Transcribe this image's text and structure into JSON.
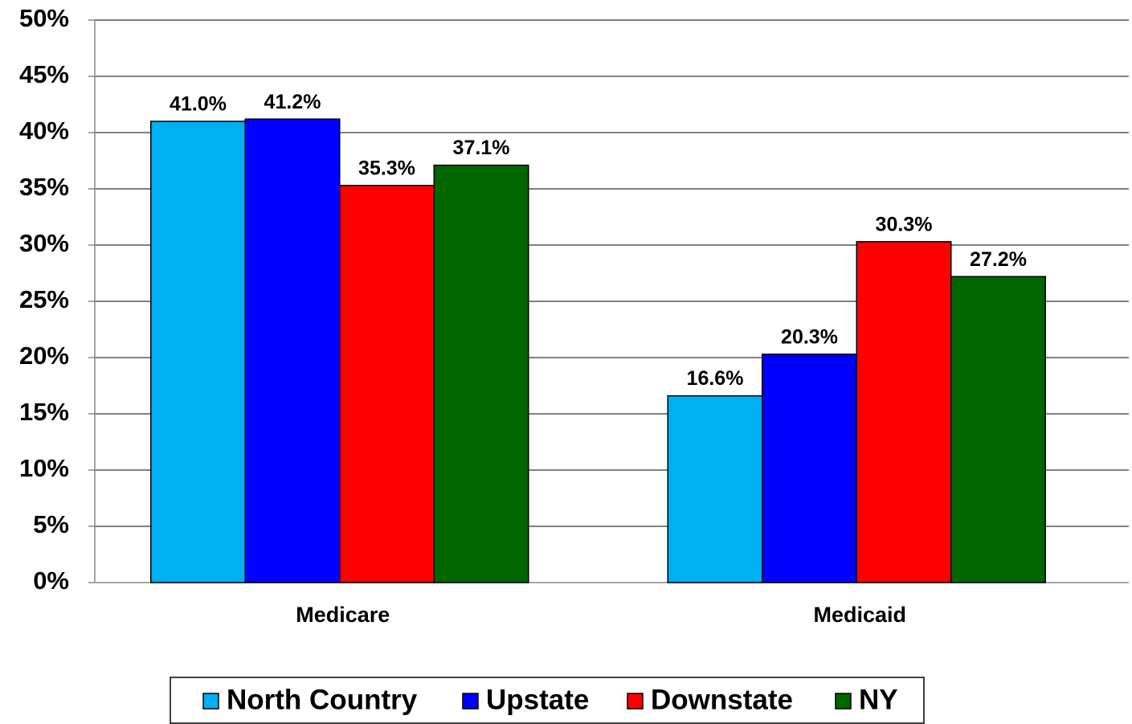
{
  "chart_data": {
    "type": "bar",
    "categories": [
      "Medicare",
      "Medicaid"
    ],
    "series": [
      {
        "name": "North Country",
        "color": "#00b0f0",
        "values": [
          41.0,
          16.6
        ],
        "value_labels": [
          "41.0%",
          "16.6%"
        ]
      },
      {
        "name": "Upstate",
        "color": "#0000ff",
        "values": [
          41.2,
          20.3
        ],
        "value_labels": [
          "41.2%",
          "20.3%"
        ]
      },
      {
        "name": "Downstate",
        "color": "#ff0000",
        "values": [
          35.3,
          30.3
        ],
        "value_labels": [
          "35.3%",
          "30.3%"
        ]
      },
      {
        "name": "NY",
        "color": "#006600",
        "values": [
          37.1,
          27.2
        ],
        "value_labels": [
          "37.1%",
          "27.2%"
        ]
      }
    ],
    "ylim": [
      0,
      50
    ],
    "yticks": [
      {
        "value": 0,
        "label": "0%"
      },
      {
        "value": 5,
        "label": "5%"
      },
      {
        "value": 10,
        "label": "10%"
      },
      {
        "value": 15,
        "label": "15%"
      },
      {
        "value": 20,
        "label": "20%"
      },
      {
        "value": 25,
        "label": "25%"
      },
      {
        "value": 30,
        "label": "30%"
      },
      {
        "value": 35,
        "label": "35%"
      },
      {
        "value": 40,
        "label": "40%"
      },
      {
        "value": 45,
        "label": "45%"
      },
      {
        "value": 50,
        "label": "50%"
      }
    ],
    "grid": true,
    "legend": "bottom"
  }
}
